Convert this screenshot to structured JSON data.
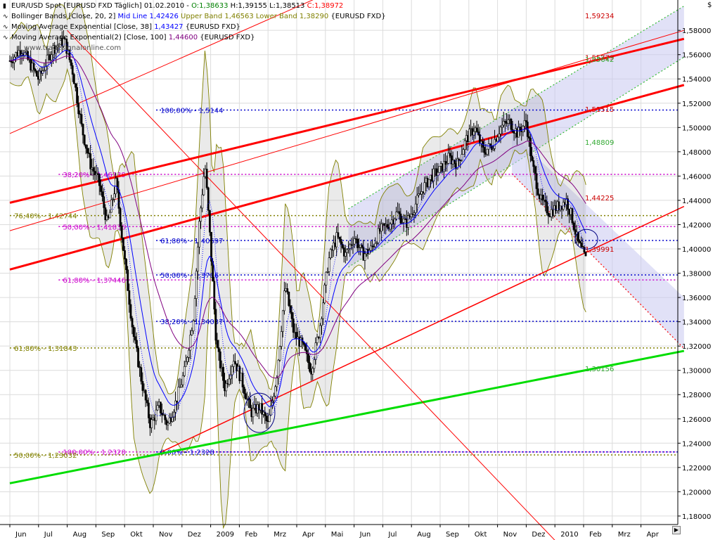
{
  "legend": {
    "row1_label": "EUR/USD Spot [EURUSD FXD  Täglich] 01.02.2010 -",
    "row1_o": "O:1,38633",
    "row1_h": "H:1,39155",
    "row1_l": "L:1,38513",
    "row1_c": "C:1,38972",
    "row2_label": "Bollinger Bands [Close, 20, 2]",
    "row2_mid": "Mid Line 1,42426",
    "row2_upper": "Upper Band 1,46563",
    "row2_lower": "Lower Band 1,38290",
    "row2_sym": "{EURUSD FXD}",
    "row3_label": "Moving Average Exponential [Close, 38]",
    "row3_val": "1,43427",
    "row3_sym": "{EURUSD FXD}",
    "row4_label": "Moving Average Exponential(2) [Close, 100]",
    "row4_val": "1,44600",
    "row4_sym": "{EURUSD FXD}",
    "watermark": "www.tradesignalonline.com",
    "colors": {
      "price": "#000000",
      "bb_mid": "#0000ff",
      "bb_upper": "#808000",
      "ema38": "#0000ff",
      "ema100": "#800080",
      "ohlc_up": "#008000",
      "ohlc_dn": "#ff0000"
    }
  },
  "axis_unit": "$",
  "scroll_icon": "scroll-right-icon",
  "chart_data": {
    "type": "candlestick",
    "title": "EUR/USD Spot [EURUSD FXD  Täglich]",
    "x_labels": [
      "Jun",
      "Jul",
      "Aug",
      "Sep",
      "Okt",
      "Nov",
      "Dez",
      "2009",
      "Feb",
      "Mrz",
      "Apr",
      "Mai",
      "Jun",
      "Jul",
      "Aug",
      "Sep",
      "Okt",
      "Nov",
      "Dez",
      "2010",
      "Feb",
      "Mrz",
      "Apr"
    ],
    "y_ticks": [
      "1,58000",
      "1,56000",
      "1,54000",
      "1,52000",
      "1,50000",
      "1,48000",
      "1,46000",
      "1,44000",
      "1,42000",
      "1,40000",
      "1,38000",
      "1,36000",
      "1,34000",
      "1,32000",
      "1,30000",
      "1,28000",
      "1,26000",
      "1,24000",
      "1,22000",
      "1,20000",
      "1,18000"
    ],
    "ylim": [
      1.173,
      1.605
    ],
    "x_month_index_range": [
      0,
      23
    ],
    "price_path": [
      [
        0.0,
        1.555
      ],
      [
        0.4,
        1.565
      ],
      [
        1.0,
        1.54
      ],
      [
        1.5,
        1.565
      ],
      [
        1.9,
        1.572
      ],
      [
        2.2,
        1.545
      ],
      [
        2.5,
        1.5
      ],
      [
        2.8,
        1.47
      ],
      [
        3.1,
        1.455
      ],
      [
        3.4,
        1.42
      ],
      [
        3.7,
        1.455
      ],
      [
        4.0,
        1.39
      ],
      [
        4.3,
        1.33
      ],
      [
        4.6,
        1.29
      ],
      [
        4.9,
        1.255
      ],
      [
        5.2,
        1.27
      ],
      [
        5.5,
        1.255
      ],
      [
        5.8,
        1.275
      ],
      [
        6.1,
        1.3
      ],
      [
        6.4,
        1.345
      ],
      [
        6.6,
        1.42
      ],
      [
        6.8,
        1.47
      ],
      [
        7.0,
        1.4
      ],
      [
        7.2,
        1.32
      ],
      [
        7.5,
        1.285
      ],
      [
        7.8,
        1.31
      ],
      [
        8.1,
        1.29
      ],
      [
        8.4,
        1.265
      ],
      [
        8.7,
        1.27
      ],
      [
        9.0,
        1.255
      ],
      [
        9.3,
        1.295
      ],
      [
        9.6,
        1.37
      ],
      [
        9.9,
        1.33
      ],
      [
        10.2,
        1.32
      ],
      [
        10.5,
        1.3
      ],
      [
        10.8,
        1.335
      ],
      [
        11.1,
        1.39
      ],
      [
        11.4,
        1.41
      ],
      [
        11.7,
        1.395
      ],
      [
        12.0,
        1.41
      ],
      [
        12.3,
        1.395
      ],
      [
        12.6,
        1.4
      ],
      [
        12.9,
        1.415
      ],
      [
        13.2,
        1.42
      ],
      [
        13.5,
        1.43
      ],
      [
        13.8,
        1.42
      ],
      [
        14.1,
        1.435
      ],
      [
        14.4,
        1.45
      ],
      [
        14.7,
        1.46
      ],
      [
        15.0,
        1.465
      ],
      [
        15.3,
        1.475
      ],
      [
        15.6,
        1.47
      ],
      [
        15.9,
        1.49
      ],
      [
        16.2,
        1.5
      ],
      [
        16.5,
        1.48
      ],
      [
        16.8,
        1.485
      ],
      [
        17.1,
        1.5
      ],
      [
        17.4,
        1.505
      ],
      [
        17.7,
        1.495
      ],
      [
        18.0,
        1.505
      ],
      [
        18.2,
        1.47
      ],
      [
        18.5,
        1.44
      ],
      [
        18.8,
        1.43
      ],
      [
        19.1,
        1.435
      ],
      [
        19.4,
        1.44
      ],
      [
        19.6,
        1.425
      ],
      [
        19.8,
        1.405
      ],
      [
        20.0,
        1.395
      ],
      [
        20.1,
        1.39
      ]
    ],
    "horizontal_levels": [
      {
        "label": "100,00% - 1,5144",
        "value": 1.5144,
        "color": "#0000cc"
      },
      {
        "label": "38,20% - 1,46139",
        "value": 1.46139,
        "color": "#cc00cc"
      },
      {
        "label": "76,40% - 1,42744",
        "value": 1.42744,
        "color": "#808000"
      },
      {
        "label": "50,00% - 1,41836",
        "value": 1.41836,
        "color": "#cc00cc"
      },
      {
        "label": "61,80% - 1,40697",
        "value": 1.40697,
        "color": "#0000cc"
      },
      {
        "label": "61,80% - 1,37446",
        "value": 1.37446,
        "color": "#cc00cc"
      },
      {
        "label": "50,00% - 1,3786",
        "value": 1.3786,
        "color": "#0000cc"
      },
      {
        "label": "38,20% - 1,34037",
        "value": 1.34037,
        "color": "#0000cc"
      },
      {
        "label": "61,80% - 1,31843",
        "value": 1.31843,
        "color": "#808000"
      },
      {
        "label": "100,00% - 1,2328",
        "value": 1.2328,
        "color": "#cc00cc"
      },
      {
        "label": "0,00% - 1,2328",
        "value": 1.2328,
        "color": "#0000cc"
      },
      {
        "label": "50,00% - 1,23032",
        "value": 1.23032,
        "color": "#808000"
      }
    ],
    "right_labels": [
      {
        "label": "1,59234",
        "value": 1.59234,
        "color": "#cc0000"
      },
      {
        "label": "1,55779",
        "value": 1.55779,
        "color": "#cc0000"
      },
      {
        "label": "1,55642",
        "value": 1.55642,
        "color": "#33aa33"
      },
      {
        "label": "1,51515",
        "value": 1.51515,
        "color": "#cc0000"
      },
      {
        "label": "1,48809",
        "value": 1.48809,
        "color": "#33aa33"
      },
      {
        "label": "1,44225",
        "value": 1.44225,
        "color": "#cc0000"
      },
      {
        "label": "1,39991",
        "value": 1.39991,
        "color": "#cc0000"
      },
      {
        "label": "1,30156",
        "value": 1.30156,
        "color": "#33aa33"
      }
    ],
    "trend_lines": [
      {
        "name": "",
        "color": "#ff0000",
        "width": 3,
        "x1": 0,
        "y1": 1.383,
        "x2": 23.5,
        "y2": 1.535
      },
      {
        "name": "",
        "color": "#ff0000",
        "width": 3,
        "x1": 0,
        "y1": 1.438,
        "x2": 23.5,
        "y2": 1.573
      },
      {
        "name": "",
        "color": "#ff0000",
        "width": 1,
        "x1": 0,
        "y1": 1.415,
        "x2": 23.5,
        "y2": 1.58
      },
      {
        "name": "",
        "color": "#ff0000",
        "width": 1,
        "x1": 0,
        "y1": 1.495,
        "x2": 23.5,
        "y2": 1.74
      },
      {
        "name": "",
        "color": "#ff0000",
        "width": 1.5,
        "x1": 5.3,
        "y1": 1.233,
        "x2": 23.5,
        "y2": 1.435
      },
      {
        "name": "",
        "color": "#00dd00",
        "width": 3,
        "x1": 0,
        "y1": 1.207,
        "x2": 23.5,
        "y2": 1.316
      },
      {
        "name": "",
        "color": "#ff0000",
        "width": 1,
        "x1": 2.0,
        "y1": 1.58,
        "x2": 19.0,
        "y2": 1.16
      }
    ]
  }
}
